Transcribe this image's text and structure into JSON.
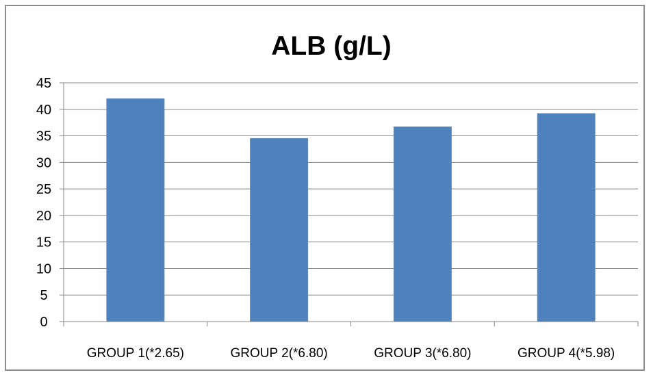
{
  "chart_data": {
    "type": "bar",
    "title": "ALB (g/L)",
    "xlabel": "",
    "ylabel": "",
    "categories": [
      "GROUP 1(*2.65)",
      "GROUP 2(*6.80)",
      "GROUP 3(*6.80)",
      "GROUP 4(*5.98)"
    ],
    "values": [
      42,
      34.5,
      36.7,
      39.2
    ],
    "ylim": [
      0,
      45
    ],
    "yticks": [
      0,
      5,
      10,
      15,
      20,
      25,
      30,
      35,
      40,
      45
    ],
    "grid": true,
    "legend": "none",
    "bar_color": "#4f81bd",
    "grid_color": "#868686"
  }
}
